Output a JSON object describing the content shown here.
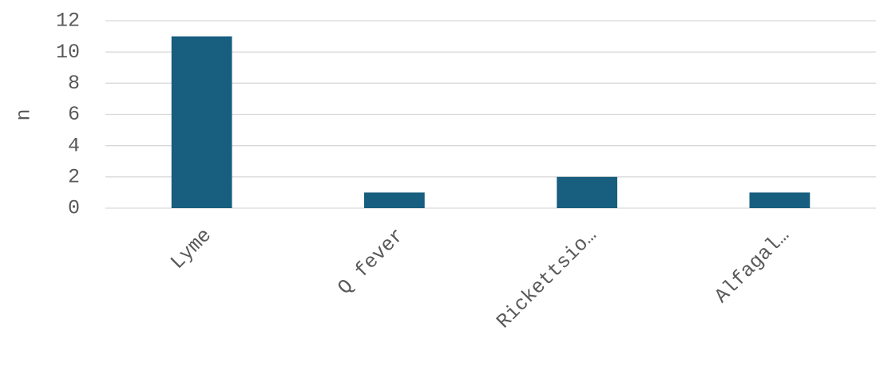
{
  "chart_data": {
    "type": "bar",
    "y_label": "n",
    "categories": [
      "Lyme",
      "Q fever",
      "Rickettsio…",
      "Alfagal…"
    ],
    "values": [
      11,
      1,
      2,
      1
    ],
    "color": "#175e7f",
    "ylim": [
      0,
      12
    ],
    "yticks": [
      0,
      2,
      4,
      6,
      8,
      10,
      12
    ],
    "grid": true
  }
}
